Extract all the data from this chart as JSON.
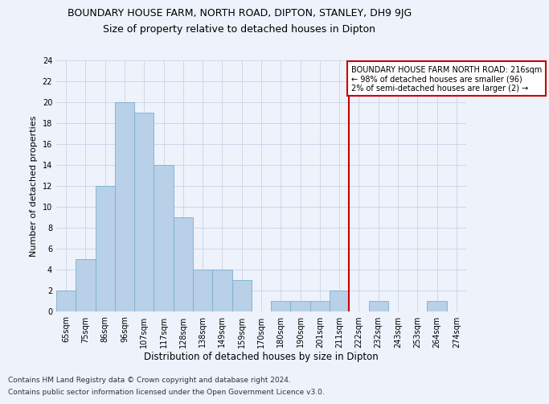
{
  "title": "BOUNDARY HOUSE FARM, NORTH ROAD, DIPTON, STANLEY, DH9 9JG",
  "subtitle": "Size of property relative to detached houses in Dipton",
  "xlabel": "Distribution of detached houses by size in Dipton",
  "ylabel": "Number of detached properties",
  "footer1": "Contains HM Land Registry data © Crown copyright and database right 2024.",
  "footer2": "Contains public sector information licensed under the Open Government Licence v3.0.",
  "categories": [
    "65sqm",
    "75sqm",
    "86sqm",
    "96sqm",
    "107sqm",
    "117sqm",
    "128sqm",
    "138sqm",
    "149sqm",
    "159sqm",
    "170sqm",
    "180sqm",
    "190sqm",
    "201sqm",
    "211sqm",
    "222sqm",
    "232sqm",
    "243sqm",
    "253sqm",
    "264sqm",
    "274sqm"
  ],
  "values": [
    2,
    5,
    12,
    20,
    19,
    14,
    9,
    4,
    4,
    3,
    0,
    1,
    1,
    1,
    2,
    0,
    1,
    0,
    0,
    1,
    0
  ],
  "bar_color": "#b8d0e8",
  "bar_edge_color": "#7aafd0",
  "vline_x": 14.5,
  "vline_color": "#cc0000",
  "annotation_text": "BOUNDARY HOUSE FARM NORTH ROAD: 216sqm\n← 98% of detached houses are smaller (96)\n2% of semi-detached houses are larger (2) →",
  "annotation_box_color": "#ffffff",
  "annotation_box_edge": "#cc0000",
  "ylim": [
    0,
    24
  ],
  "yticks": [
    0,
    2,
    4,
    6,
    8,
    10,
    12,
    14,
    16,
    18,
    20,
    22,
    24
  ],
  "background_color": "#eef2fa",
  "grid_color": "#c8d4e8",
  "title_fontsize": 9,
  "subtitle_fontsize": 9,
  "tick_fontsize": 7,
  "ylabel_fontsize": 8,
  "xlabel_fontsize": 8.5,
  "footer_fontsize": 6.5,
  "annot_fontsize": 7
}
